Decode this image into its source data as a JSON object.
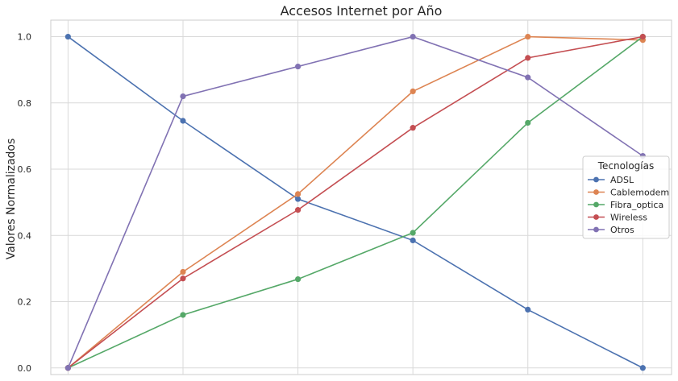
{
  "chart_data": {
    "type": "line",
    "title": "Accesos Internet por Año",
    "xlabel": "",
    "ylabel": "Valores Normalizados",
    "x": [
      0,
      1,
      2,
      3,
      4,
      5
    ],
    "xtick_labels": [],
    "ylim": [
      -0.02,
      1.05
    ],
    "yticks": [
      0.0,
      0.2,
      0.4,
      0.6,
      0.8,
      1.0
    ],
    "ytick_labels": [
      "0.0",
      "0.2",
      "0.4",
      "0.6",
      "0.8",
      "1.0"
    ],
    "grid": true,
    "legend": {
      "title": "Tecnologías",
      "placement": "center-right"
    },
    "series": [
      {
        "name": "ADSL",
        "color": "#4c72b0",
        "values": [
          1.0,
          0.746,
          0.51,
          0.385,
          0.176,
          0.0
        ]
      },
      {
        "name": "Cablemodem",
        "color": "#dd8452",
        "values": [
          0.0,
          0.29,
          0.525,
          0.835,
          1.0,
          0.99
        ]
      },
      {
        "name": "Fibra_optica",
        "color": "#55a868",
        "values": [
          0.0,
          0.16,
          0.268,
          0.408,
          0.74,
          1.0
        ]
      },
      {
        "name": "Wireless",
        "color": "#c44e52",
        "values": [
          0.0,
          0.27,
          0.477,
          0.725,
          0.936,
          1.0
        ]
      },
      {
        "name": "Otros",
        "color": "#8172b3",
        "values": [
          0.0,
          0.82,
          0.91,
          1.0,
          0.877,
          0.64
        ]
      }
    ]
  }
}
